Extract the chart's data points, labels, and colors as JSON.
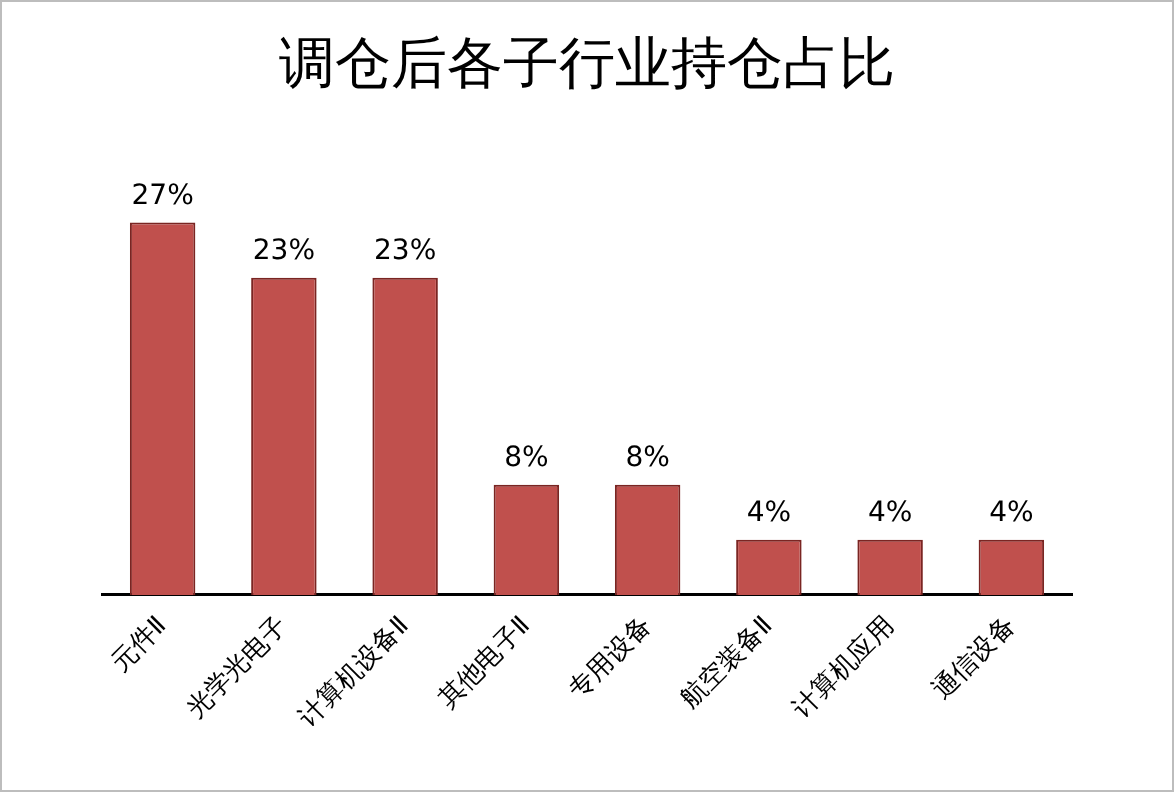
{
  "chart_data": {
    "type": "bar",
    "title": "调仓后各子行业持仓占比",
    "categories": [
      "元件Ⅱ",
      "光学光电子",
      "计算机设备Ⅱ",
      "其他电子Ⅱ",
      "专用设备",
      "航空装备Ⅱ",
      "计算机应用",
      "通信设备"
    ],
    "values": [
      27,
      23,
      23,
      8,
      8,
      4,
      4,
      4
    ],
    "value_labels": [
      "27%",
      "23%",
      "23%",
      "8%",
      "8%",
      "4%",
      "4%",
      "4%"
    ],
    "color": "#c0504d"
  }
}
